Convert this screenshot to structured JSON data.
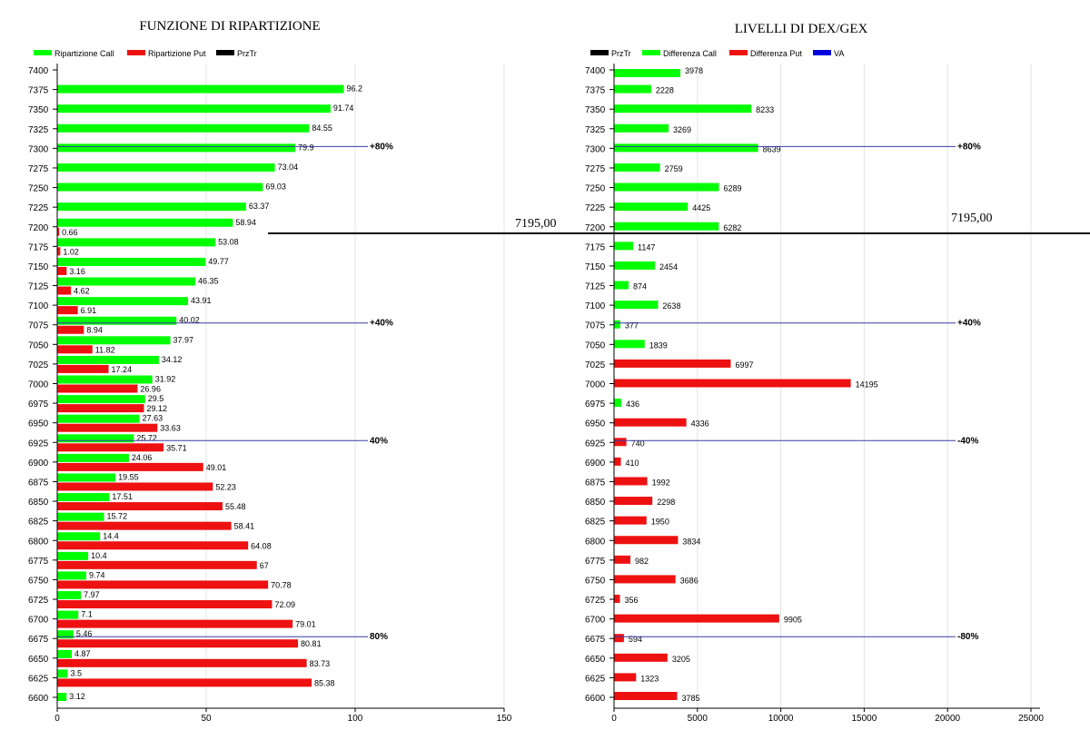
{
  "colors": {
    "call": "#00ff00",
    "put": "#ee1111",
    "prztr": "#000000",
    "va": "#0000dd",
    "grid": "#e4e4e4",
    "axis": "#000000",
    "ref": "#3a3aa8"
  },
  "price_label": "7195,00",
  "price_value": 7195,
  "chart_data": [
    {
      "type": "bar",
      "orientation": "horizontal",
      "title": "FUNZIONE DI RIPARTIZIONE",
      "legend": [
        "Ripartizione Call",
        "Ripartizione Put",
        "PrzTr"
      ],
      "categories": [
        7400,
        7375,
        7350,
        7325,
        7300,
        7275,
        7250,
        7225,
        7200,
        7175,
        7150,
        7125,
        7100,
        7075,
        7050,
        7025,
        7000,
        6975,
        6950,
        6925,
        6900,
        6875,
        6850,
        6825,
        6800,
        6775,
        6750,
        6725,
        6700,
        6675,
        6650,
        6625,
        6600
      ],
      "xlim": [
        0,
        150
      ],
      "xticks": [
        0,
        50,
        100,
        150
      ],
      "series": [
        {
          "name": "Ripartizione Call",
          "values": [
            null,
            96.2,
            91.74,
            84.55,
            79.9,
            73.04,
            69.03,
            63.37,
            58.94,
            53.08,
            49.77,
            46.35,
            43.91,
            40.02,
            37.97,
            34.12,
            31.92,
            29.5,
            27.63,
            25.72,
            24.06,
            19.55,
            17.51,
            15.72,
            14.4,
            10.4,
            9.74,
            7.97,
            7.1,
            5.46,
            4.87,
            3.5,
            3.12
          ]
        },
        {
          "name": "Ripartizione Put",
          "values": [
            null,
            null,
            null,
            null,
            null,
            null,
            null,
            null,
            0.66,
            1.02,
            3.16,
            4.62,
            6.91,
            8.94,
            11.82,
            17.24,
            26.96,
            29.12,
            33.63,
            35.71,
            49.01,
            52.23,
            55.48,
            58.41,
            64.08,
            67,
            70.78,
            72.09,
            79.01,
            80.81,
            83.73,
            85.38,
            null
          ]
        }
      ],
      "reference_lines": [
        {
          "strike": 7300,
          "label": "+80%"
        },
        {
          "strike": 7075,
          "label": "+40%"
        },
        {
          "strike": 6925,
          "label": "40%"
        },
        {
          "strike": 6675,
          "label": "80%"
        }
      ]
    },
    {
      "type": "bar",
      "orientation": "horizontal",
      "title": "LIVELLI DI DEX/GEX",
      "legend": [
        "PrzTr",
        "Differenza Call",
        "Differenza Put",
        "VA"
      ],
      "categories": [
        7400,
        7375,
        7350,
        7325,
        7300,
        7275,
        7250,
        7225,
        7200,
        7175,
        7150,
        7125,
        7100,
        7075,
        7050,
        7025,
        7000,
        6975,
        6950,
        6925,
        6900,
        6875,
        6850,
        6825,
        6800,
        6775,
        6750,
        6725,
        6700,
        6675,
        6650,
        6625,
        6600
      ],
      "xlim": [
        0,
        25000
      ],
      "xticks": [
        0,
        5000,
        10000,
        15000,
        20000,
        25000
      ],
      "values": [
        3978,
        2228,
        8233,
        3269,
        8639,
        2759,
        6289,
        4425,
        6282,
        1147,
        2454,
        874,
        2638,
        377,
        1839,
        6997,
        14195,
        436,
        4336,
        740,
        410,
        1992,
        2298,
        1950,
        3834,
        982,
        3686,
        356,
        9905,
        594,
        3205,
        1323,
        3785
      ],
      "side": [
        "call",
        "call",
        "call",
        "call",
        "call",
        "call",
        "call",
        "call",
        "call",
        "call",
        "call",
        "call",
        "call",
        "call",
        "call",
        "put",
        "put",
        "call",
        "put",
        "put",
        "put",
        "put",
        "put",
        "put",
        "put",
        "put",
        "put",
        "put",
        "put",
        "put",
        "put",
        "put",
        "put"
      ],
      "reference_lines": [
        {
          "strike": 7300,
          "label": "+80%"
        },
        {
          "strike": 7075,
          "label": "+40%"
        },
        {
          "strike": 6925,
          "label": "-40%"
        },
        {
          "strike": 6675,
          "label": "-80%"
        }
      ]
    }
  ]
}
